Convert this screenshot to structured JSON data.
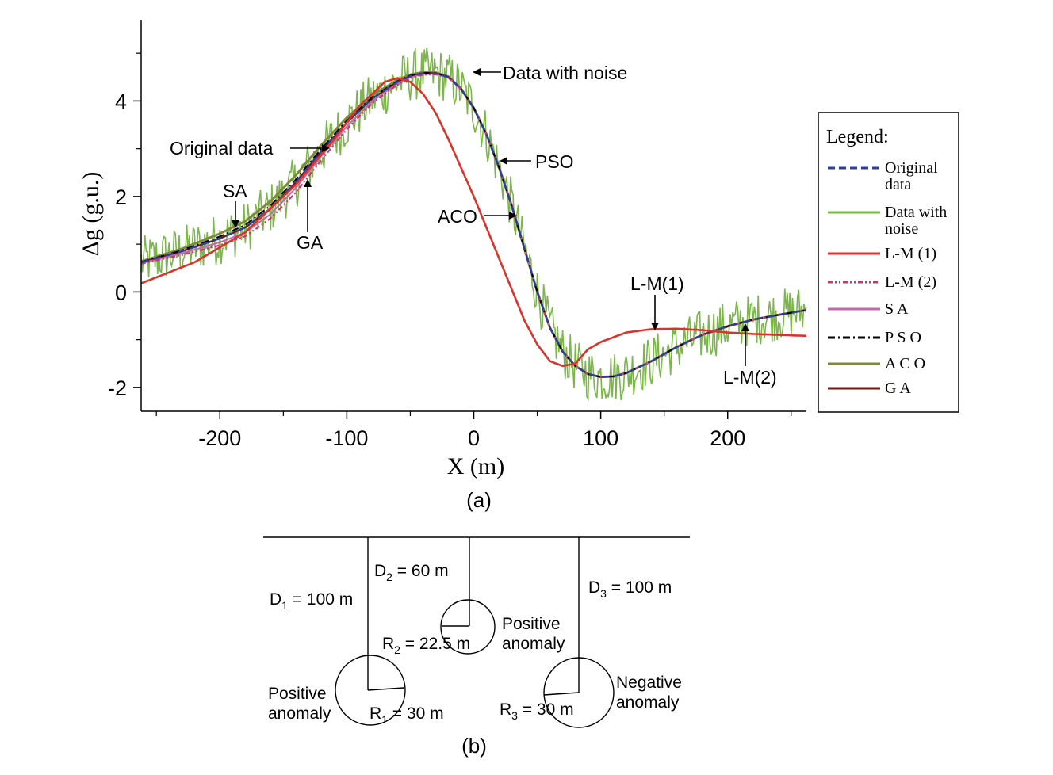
{
  "chart_data": {
    "type": "line",
    "ylabel": "Δg (g.u.)",
    "xlabel_main": "X",
    "xlabel_unit": "(m)",
    "xlim": [
      -262,
      262
    ],
    "ylim": [
      -2.5,
      5.7
    ],
    "x_ticks": [
      -200,
      -100,
      0,
      100,
      200
    ],
    "y_ticks": [
      -2,
      0,
      2,
      4
    ],
    "colors": {
      "original": "#2b3f9a",
      "noise": "#7ab648",
      "lm1": "#d9342b",
      "lm2": "#cc3377",
      "sa": "#c06aa8",
      "pso": "#000000",
      "aco": "#7f8a36",
      "ga": "#6b1a14"
    },
    "series": [
      {
        "name": "L-M (1)",
        "x": [
          -262,
          -220,
          -180,
          -140,
          -110,
          -90,
          -70,
          -60,
          -50,
          -40,
          -30,
          -20,
          -10,
          0,
          10,
          20,
          30,
          40,
          50,
          60,
          70,
          80,
          90,
          100,
          110,
          120,
          140,
          160,
          180,
          200,
          220,
          240,
          262
        ],
        "y": [
          0.18,
          0.62,
          1.25,
          2.25,
          3.2,
          3.9,
          4.4,
          4.48,
          4.4,
          4.15,
          3.75,
          3.2,
          2.6,
          2.0,
          1.35,
          0.7,
          0.05,
          -0.6,
          -1.1,
          -1.45,
          -1.55,
          -1.5,
          -1.2,
          -1.05,
          -0.95,
          -0.85,
          -0.78,
          -0.77,
          -0.8,
          -0.85,
          -0.88,
          -0.9,
          -0.92
        ]
      },
      {
        "name": "Original data",
        "x": [
          -262,
          -230,
          -200,
          -180,
          -160,
          -140,
          -120,
          -100,
          -80,
          -60,
          -50,
          -40,
          -30,
          -20,
          -10,
          0,
          10,
          20,
          30,
          40,
          50,
          60,
          70,
          80,
          90,
          100,
          110,
          120,
          140,
          160,
          180,
          200,
          220,
          240,
          262
        ],
        "y": [
          0.62,
          0.85,
          1.12,
          1.35,
          1.75,
          2.3,
          2.95,
          3.55,
          4.05,
          4.4,
          4.52,
          4.58,
          4.58,
          4.5,
          4.25,
          3.85,
          3.3,
          2.6,
          1.8,
          0.9,
          0.0,
          -0.75,
          -1.25,
          -1.55,
          -1.72,
          -1.78,
          -1.77,
          -1.7,
          -1.45,
          -1.15,
          -0.9,
          -0.72,
          -0.58,
          -0.48,
          -0.38
        ]
      },
      {
        "name": "L-M (2)"
      },
      {
        "name": "SA"
      },
      {
        "name": "PSO"
      },
      {
        "name": "ACO"
      },
      {
        "name": "GA"
      },
      {
        "name": "Data with noise",
        "noise_amplitude": 0.55
      }
    ],
    "annotations": [
      {
        "text": "Data with noise"
      },
      {
        "text": "Original data"
      },
      {
        "text": "SA"
      },
      {
        "text": "GA"
      },
      {
        "text": "PSO"
      },
      {
        "text": "ACO"
      },
      {
        "text": "L-M(1)"
      },
      {
        "text": "L-M(2)"
      }
    ],
    "legend": {
      "title": "Legend:",
      "position": "right",
      "entries": [
        {
          "line1": "Original",
          "line2": "data",
          "key": "original",
          "style": "dashed"
        },
        {
          "line1": "Data with",
          "line2": "noise",
          "key": "noise",
          "style": "solid"
        },
        {
          "line1": "L-M  (1)",
          "line2": "",
          "key": "lm1",
          "style": "solid"
        },
        {
          "line1": "L-M  (2)",
          "line2": "",
          "key": "lm2",
          "style": "dashdotdot"
        },
        {
          "line1": "S A",
          "line2": "",
          "key": "sa",
          "style": "solid"
        },
        {
          "line1": "P S O",
          "line2": "",
          "key": "pso",
          "style": "dashdot"
        },
        {
          "line1": "A C O",
          "line2": "",
          "key": "aco",
          "style": "solid"
        },
        {
          "line1": "G A",
          "line2": "",
          "key": "ga",
          "style": "solid"
        }
      ]
    },
    "caption": "(a)"
  },
  "diagram": {
    "caption": "(b)",
    "labels": {
      "d1_pre": "D",
      "d1_sub": "1",
      "d1_post": " = 100 m",
      "d2_pre": "D",
      "d2_sub": "2",
      "d2_post": " = 60 m",
      "d3_pre": "D",
      "d3_sub": "3",
      "d3_post": " = 100 m",
      "r1_pre": "R",
      "r1_sub": "1",
      "r1_post": " = 30 m",
      "r2_pre": "R",
      "r2_sub": "2",
      "r2_post": " = 22.5 m",
      "r3_pre": "R",
      "r3_sub": "3",
      "r3_post": " = 30 m",
      "pos1_a": "Positive",
      "pos1_b": "anomaly",
      "pos2_a": "Positive",
      "pos2_b": "anomaly",
      "neg_a": "Negative",
      "neg_b": "anomaly"
    }
  }
}
